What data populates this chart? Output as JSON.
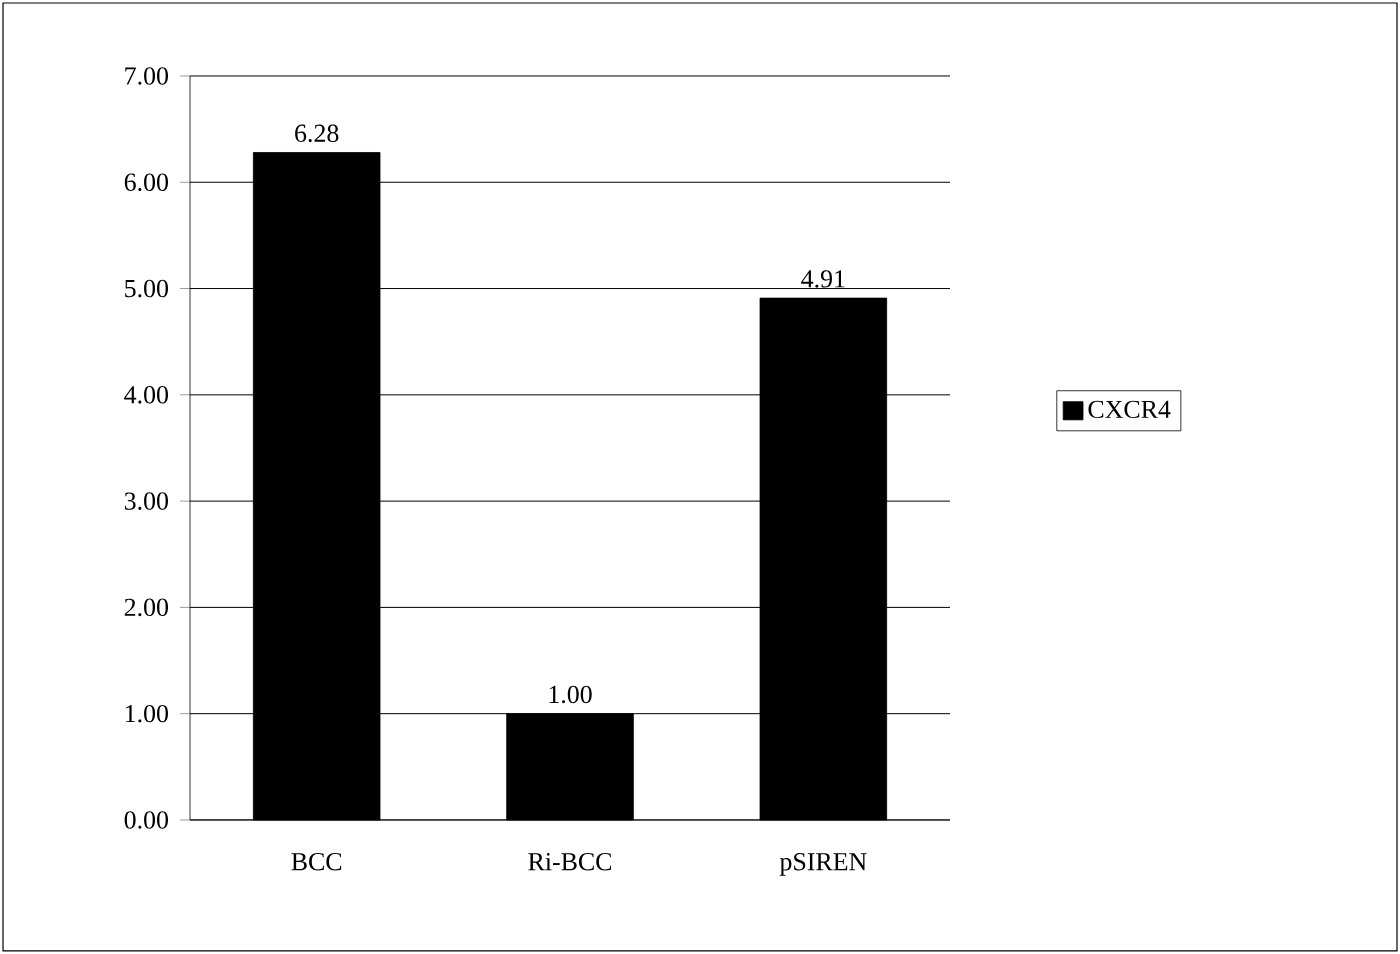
{
  "chart_data": {
    "type": "bar",
    "categories": [
      "BCC",
      "Ri-BCC",
      "pSIREN"
    ],
    "series": [
      {
        "name": "CXCR4",
        "color": "#000000",
        "values": [
          6.28,
          1.0,
          4.91
        ],
        "value_labels": [
          "6.28",
          "1.00",
          "4.91"
        ]
      }
    ],
    "ylim": [
      0,
      7
    ],
    "yticks": [
      {
        "value": 0,
        "label": "0.00"
      },
      {
        "value": 1,
        "label": "1.00"
      },
      {
        "value": 2,
        "label": "2.00"
      },
      {
        "value": 3,
        "label": "3.00"
      },
      {
        "value": 4,
        "label": "4.00"
      },
      {
        "value": 5,
        "label": "5.00"
      },
      {
        "value": 6,
        "label": "6.00"
      },
      {
        "value": 7,
        "label": "7.00"
      }
    ],
    "grid": "y",
    "legend": "right"
  }
}
